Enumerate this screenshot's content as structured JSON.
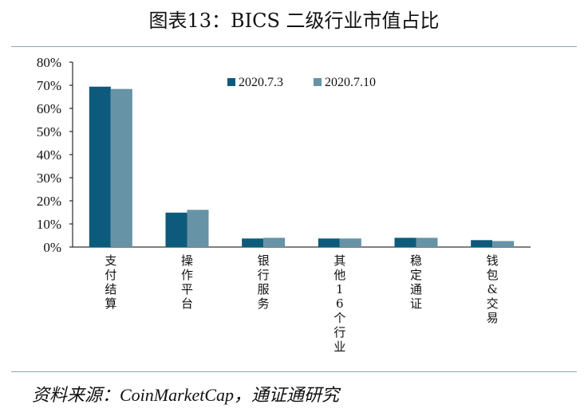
{
  "chart_data": {
    "type": "bar",
    "title": "图表13：BICS 二级行业市值占比",
    "categories": [
      "支付结算",
      "操作平台",
      "银行服务",
      "其他16个行业",
      "稳定通证",
      "钱包&交易"
    ],
    "series": [
      {
        "name": "2020.7.3",
        "color": "#0e5a7c",
        "values": [
          69.4,
          14.9,
          3.7,
          3.7,
          4.0,
          3.0
        ]
      },
      {
        "name": "2020.7.10",
        "color": "#6693a6",
        "values": [
          68.4,
          16.1,
          4.0,
          3.7,
          4.0,
          2.6
        ]
      }
    ],
    "ylim": [
      0,
      80
    ],
    "yticks": [
      "0%",
      "10%",
      "20%",
      "30%",
      "40%",
      "50%",
      "60%",
      "70%",
      "80%"
    ],
    "legend": "top-center",
    "grid": false
  },
  "source": "资料来源：CoinMarketCap，通证通研究"
}
